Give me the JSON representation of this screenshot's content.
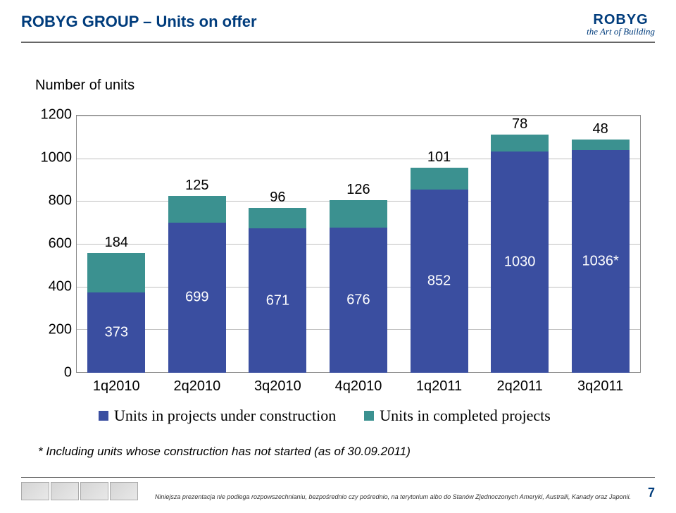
{
  "header": {
    "title": "ROBYG GROUP – Units on offer",
    "logo_main": "ROBYG",
    "logo_sub": "the Art of Building"
  },
  "chart": {
    "type": "stacked-bar",
    "ylabel": "Number of units",
    "ylim": [
      0,
      1200
    ],
    "ytick_step": 200,
    "yticks": [
      "0",
      "200",
      "400",
      "600",
      "800",
      "1000",
      "1200"
    ],
    "categories": [
      "1q2010",
      "2q2010",
      "3q2010",
      "4q2010",
      "1q2011",
      "2q2011",
      "3q2011"
    ],
    "series": [
      {
        "name": "Units in projects under construction",
        "color": "#3a4ea0"
      },
      {
        "name": "Units in completed projects",
        "color": "#3b9190"
      }
    ],
    "bars": [
      {
        "construction": 373,
        "completed": 184
      },
      {
        "construction": 699,
        "completed": 125
      },
      {
        "construction": 671,
        "completed": 96
      },
      {
        "construction": 676,
        "completed": 126
      },
      {
        "construction": 852,
        "completed": 101
      },
      {
        "construction": 1030,
        "completed": 78
      },
      {
        "construction": 1036,
        "completed": 48,
        "construction_label": "1036*"
      }
    ],
    "grid_color": "#bfbfbf",
    "border_color": "#888888"
  },
  "footnote": "* Including units whose construction has not started (as of 30.09.2011)",
  "footer": {
    "disclaimer": "Niniejsza prezentacja nie podlega rozpowszechnianiu, bezpośrednio czy pośrednio, na terytorium albo do Stanów Zjednoczonych Ameryki, Australii, Kanady oraz Japonii.",
    "page_number": "7"
  }
}
